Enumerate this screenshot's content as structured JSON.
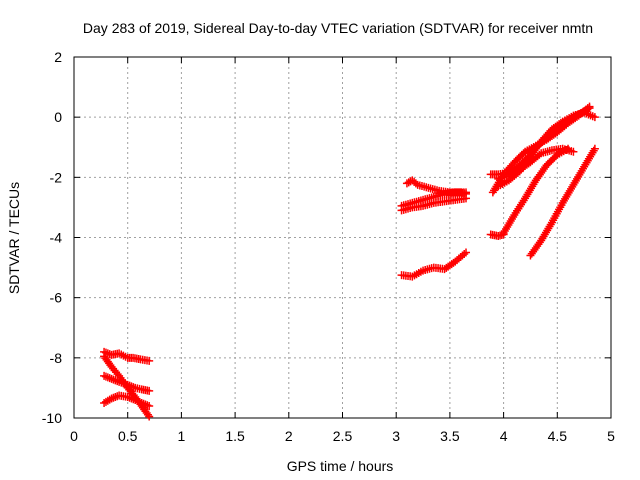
{
  "chart_data": {
    "type": "scatter",
    "title": "Day 283 of 2019, Sidereal Day-to-day VTEC variation (SDTVAR) for receiver nmtn",
    "xlabel": "GPS time / hours",
    "ylabel": "SDTVAR / TECUs",
    "xlim": [
      0,
      5
    ],
    "ylim": [
      -10,
      2
    ],
    "xticks": [
      "0",
      "0.5",
      "1",
      "1.5",
      "2",
      "2.5",
      "3",
      "3.5",
      "4",
      "4.5",
      "5"
    ],
    "yticks": [
      "-10",
      "-8",
      "-6",
      "-4",
      "-2",
      "0",
      "2"
    ],
    "grid": true,
    "marker": "plus",
    "color": "#ff0000",
    "series": [
      {
        "x": [
          0.28,
          0.35,
          0.42,
          0.5,
          0.55,
          0.62,
          0.7
        ],
        "y": [
          -7.8,
          -7.9,
          -7.85,
          -8.0,
          -8.0,
          -8.05,
          -8.1
        ]
      },
      {
        "x": [
          0.28,
          0.35,
          0.42,
          0.5,
          0.57,
          0.63,
          0.7
        ],
        "y": [
          -7.95,
          -8.3,
          -8.6,
          -9.0,
          -9.3,
          -9.6,
          -9.95
        ]
      },
      {
        "x": [
          0.28,
          0.35,
          0.42,
          0.5,
          0.57,
          0.63,
          0.7
        ],
        "y": [
          -8.6,
          -8.7,
          -8.8,
          -8.9,
          -9.0,
          -9.05,
          -9.1
        ]
      },
      {
        "x": [
          0.28,
          0.35,
          0.42,
          0.5,
          0.57,
          0.63,
          0.7
        ],
        "y": [
          -9.5,
          -9.35,
          -9.25,
          -9.3,
          -9.4,
          -9.5,
          -9.6
        ]
      },
      {
        "x": [
          3.1,
          3.15,
          3.2,
          3.3,
          3.4,
          3.5,
          3.6,
          3.65
        ],
        "y": [
          -2.2,
          -2.1,
          -2.25,
          -2.35,
          -2.45,
          -2.5,
          -2.5,
          -2.55
        ]
      },
      {
        "x": [
          3.05,
          3.15,
          3.25,
          3.35,
          3.45,
          3.55,
          3.65
        ],
        "y": [
          -2.95,
          -2.85,
          -2.75,
          -2.65,
          -2.55,
          -2.5,
          -2.5
        ]
      },
      {
        "x": [
          3.05,
          3.15,
          3.25,
          3.35,
          3.45,
          3.55,
          3.65
        ],
        "y": [
          -3.1,
          -3.0,
          -2.95,
          -2.85,
          -2.8,
          -2.75,
          -2.7
        ]
      },
      {
        "x": [
          3.05,
          3.15,
          3.25,
          3.35,
          3.45,
          3.55,
          3.65
        ],
        "y": [
          -5.25,
          -5.3,
          -5.1,
          -5.0,
          -5.05,
          -4.8,
          -4.5
        ]
      },
      {
        "x": [
          3.88,
          3.95,
          4.05,
          4.15,
          4.25,
          4.3,
          4.4,
          4.5,
          4.6,
          4.7,
          4.8
        ],
        "y": [
          -1.9,
          -1.9,
          -1.85,
          -1.6,
          -1.25,
          -1.0,
          -0.7,
          -0.4,
          -0.1,
          0.1,
          0.3
        ]
      },
      {
        "x": [
          3.9,
          4.0,
          4.1,
          4.2,
          4.3,
          4.4,
          4.5,
          4.6,
          4.7,
          4.8
        ],
        "y": [
          -2.5,
          -1.9,
          -1.5,
          -1.15,
          -0.95,
          -0.75,
          -0.5,
          -0.2,
          0.05,
          0.35
        ]
      },
      {
        "x": [
          3.95,
          4.05,
          4.15,
          4.25,
          4.35,
          4.45,
          4.55,
          4.65,
          4.75,
          4.85
        ],
        "y": [
          -2.3,
          -2.1,
          -1.8,
          -1.3,
          -0.8,
          -0.4,
          -0.15,
          0.05,
          0.15,
          0.0
        ]
      },
      {
        "x": [
          3.95,
          4.05,
          4.15,
          4.25,
          4.35,
          4.45,
          4.55,
          4.65
        ],
        "y": [
          -2.05,
          -1.95,
          -1.75,
          -1.5,
          -1.2,
          -1.1,
          -1.05,
          -1.15
        ]
      },
      {
        "x": [
          3.88,
          3.95,
          4.0
        ],
        "y": [
          -3.9,
          -3.95,
          -3.9
        ]
      },
      {
        "x": [
          4.0,
          4.1,
          4.2,
          4.3,
          4.4,
          4.5,
          4.6
        ],
        "y": [
          -3.85,
          -3.25,
          -2.7,
          -2.1,
          -1.6,
          -1.25,
          -1.05
        ]
      },
      {
        "x": [
          4.25,
          4.35,
          4.45,
          4.55,
          4.65,
          4.75,
          4.85
        ],
        "y": [
          -4.6,
          -4.1,
          -3.5,
          -2.85,
          -2.25,
          -1.65,
          -1.05
        ]
      }
    ]
  }
}
